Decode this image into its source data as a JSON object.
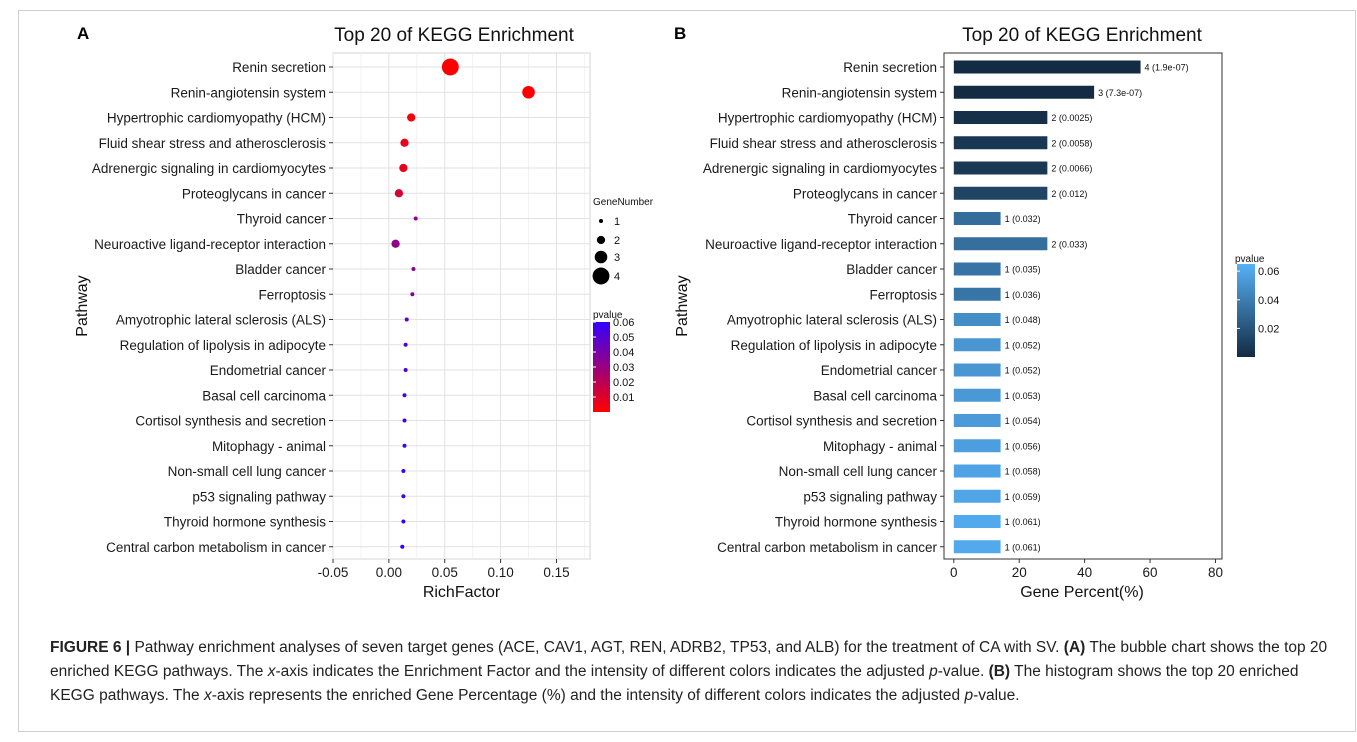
{
  "chart_data": [
    {
      "type": "scatter",
      "panel": "A",
      "title": "Top 20 of KEGG Enrichment",
      "xlabel": "RichFactor",
      "ylabel": "Pathway",
      "xlim": [
        -0.05,
        0.18
      ],
      "xticks": [
        "-0.05",
        "0.00",
        "0.05",
        "0.10",
        "0.15"
      ],
      "xtick_values": [
        -0.05,
        0.0,
        0.05,
        0.1,
        0.15
      ],
      "grid": true,
      "categories": [
        "Renin secretion",
        "Renin-angiotensin system",
        "Hypertrophic cardiomyopathy (HCM)",
        "Fluid shear stress and atherosclerosis",
        "Adrenergic signaling in cardiomyocytes",
        "Proteoglycans in cancer",
        "Thyroid cancer",
        "Neuroactive ligand-receptor interaction",
        "Bladder cancer",
        "Ferroptosis",
        "Amyotrophic lateral sclerosis (ALS)",
        "Regulation of lipolysis in adipocyte",
        "Endometrial cancer",
        "Basal cell carcinoma",
        "Cortisol synthesis and secretion",
        "Mitophagy - animal",
        "Non-small cell lung cancer",
        "p53 signaling pathway",
        "Thyroid hormone synthesis",
        "Central carbon metabolism in cancer"
      ],
      "x": [
        0.055,
        0.125,
        0.02,
        0.014,
        0.013,
        0.009,
        0.024,
        0.006,
        0.022,
        0.021,
        0.016,
        0.015,
        0.015,
        0.014,
        0.014,
        0.014,
        0.013,
        0.013,
        0.013,
        0.012
      ],
      "gene_number": [
        4,
        3,
        2,
        2,
        2,
        2,
        1,
        2,
        1,
        1,
        1,
        1,
        1,
        1,
        1,
        1,
        1,
        1,
        1,
        1
      ],
      "pvalue": [
        1.9e-07,
        7.3e-07,
        0.0025,
        0.0058,
        0.0066,
        0.012,
        0.032,
        0.033,
        0.035,
        0.036,
        0.048,
        0.052,
        0.052,
        0.053,
        0.054,
        0.056,
        0.058,
        0.059,
        0.061,
        0.061
      ],
      "legend_size": {
        "title": "GeneNumber",
        "labels": [
          "1",
          "2",
          "3",
          "4"
        ],
        "values": [
          1,
          2,
          3,
          4
        ]
      },
      "legend_color": {
        "title": "pvalue",
        "labels": [
          "0.06",
          "0.05",
          "0.04",
          "0.03",
          "0.02",
          "0.01"
        ],
        "values": [
          0.06,
          0.05,
          0.04,
          0.03,
          0.02,
          0.01
        ],
        "range": [
          0,
          0.06
        ],
        "low_color": "#ff0000",
        "high_color": "#3300ff"
      },
      "legend_placement": "right"
    },
    {
      "type": "bar",
      "panel": "B",
      "orientation": "horizontal",
      "title": "Top 20 of KEGG Enrichment",
      "xlabel": "Gene Percent(%)",
      "ylabel": "Pathway",
      "xlim": [
        -3,
        82
      ],
      "xticks": [
        "0",
        "20",
        "40",
        "60",
        "80"
      ],
      "xtick_values": [
        0,
        20,
        40,
        60,
        80
      ],
      "grid": false,
      "categories": [
        "Renin secretion",
        "Renin-angiotensin system",
        "Hypertrophic cardiomyopathy (HCM)",
        "Fluid shear stress and atherosclerosis",
        "Adrenergic signaling in cardiomyocytes",
        "Proteoglycans in cancer",
        "Thyroid cancer",
        "Neuroactive ligand-receptor interaction",
        "Bladder cancer",
        "Ferroptosis",
        "Amyotrophic lateral sclerosis (ALS)",
        "Regulation of lipolysis in adipocyte",
        "Endometrial cancer",
        "Basal cell carcinoma",
        "Cortisol synthesis and secretion",
        "Mitophagy - animal",
        "Non-small cell lung cancer",
        "p53 signaling pathway",
        "Thyroid hormone synthesis",
        "Central carbon metabolism in cancer"
      ],
      "values": [
        57.1,
        42.9,
        28.6,
        28.6,
        28.6,
        28.6,
        14.3,
        28.6,
        14.3,
        14.3,
        14.3,
        14.3,
        14.3,
        14.3,
        14.3,
        14.3,
        14.3,
        14.3,
        14.3,
        14.3
      ],
      "pvalue": [
        1.9e-07,
        7.3e-07,
        0.0025,
        0.0058,
        0.0066,
        0.012,
        0.032,
        0.033,
        0.035,
        0.036,
        0.048,
        0.052,
        0.052,
        0.053,
        0.054,
        0.056,
        0.058,
        0.059,
        0.061,
        0.061
      ],
      "bar_labels": [
        "4 (1.9e-07)",
        "3 (7.3e-07)",
        "2 (0.0025)",
        "2 (0.0058)",
        "2 (0.0066)",
        "2 (0.012)",
        "1 (0.032)",
        "2 (0.033)",
        "1 (0.035)",
        "1 (0.036)",
        "1 (0.048)",
        "1 (0.052)",
        "1 (0.052)",
        "1 (0.053)",
        "1 (0.054)",
        "1 (0.056)",
        "1 (0.058)",
        "1 (0.059)",
        "1 (0.061)",
        "1 (0.061)"
      ],
      "legend_color": {
        "title": "pvalue",
        "labels": [
          "0.06",
          "0.04",
          "0.02"
        ],
        "values": [
          0.06,
          0.04,
          0.02
        ],
        "range": [
          0,
          0.065
        ],
        "low_color": "#132b43",
        "high_color": "#56b1f7"
      },
      "legend_placement": "right"
    }
  ],
  "panel_labels": [
    "A",
    "B"
  ],
  "caption": {
    "label": "FIGURE 6 |",
    "intro": " Pathway enrichment analyses of seven target genes (ACE, CAV1, AGT, REN, ADRB2, TP53, and ALB) for the treatment of CA with SV. ",
    "a_label": "(A)",
    "a_text_1": " The bubble chart shows the top 20 enriched KEGG pathways. The ",
    "a_italic_1": "x",
    "a_text_2": "-axis indicates the Enrichment Factor and the intensity of different colors indicates the adjusted ",
    "a_italic_2": "p",
    "a_text_3": "-value. ",
    "b_label": "(B)",
    "b_text_1": " The histogram shows the top 20 enriched KEGG pathways. The ",
    "b_italic_1": "x",
    "b_text_2": "-axis represents the enriched Gene Percentage (%) and the intensity of different colors indicates the adjusted ",
    "b_italic_2": "p",
    "b_text_3": "-value."
  }
}
